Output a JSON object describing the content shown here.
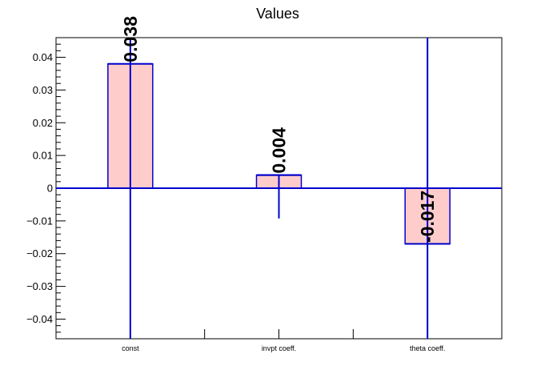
{
  "chart_data": {
    "type": "bar",
    "title": "Values",
    "xlabel": "",
    "ylabel": "",
    "categories": [
      "const",
      "invpt coeff.",
      "theta coeff."
    ],
    "values": [
      0.038,
      0.004,
      -0.017
    ],
    "value_labels": [
      "0.038",
      "0.004",
      "-0.017"
    ],
    "error_low": [
      -0.046,
      -0.009,
      -0.046
    ],
    "error_high": [
      0.046,
      0.004,
      0.046
    ],
    "ylim": [
      -0.046,
      0.046
    ],
    "yticks": [
      -0.04,
      -0.03,
      -0.02,
      -0.01,
      0,
      0.01,
      0.02,
      0.03,
      0.04
    ],
    "ytick_labels": [
      "−0.04",
      "−0.03",
      "−0.02",
      "−0.01",
      "0",
      "0.01",
      "0.02",
      "0.03",
      "0.04"
    ],
    "grid": false,
    "legend": "none",
    "bar_fill_color": "#ffcccc",
    "bar_edge_color": "#0000cc",
    "error_color": "#0000cc"
  }
}
